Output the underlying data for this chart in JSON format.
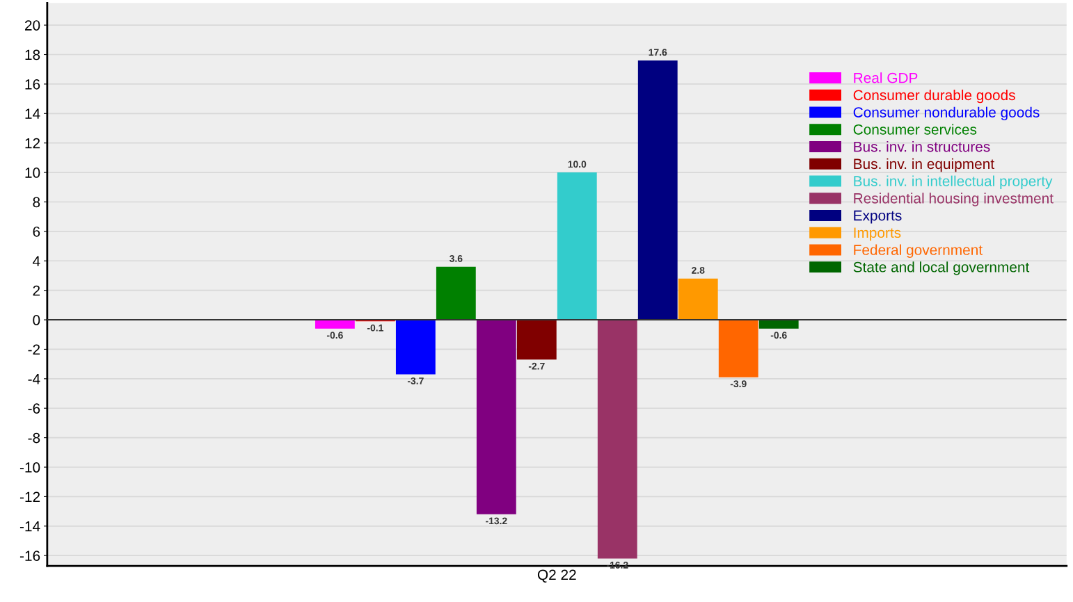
{
  "chart_data": {
    "type": "bar",
    "categories": [
      "Q2 22"
    ],
    "series": [
      {
        "name": "Real GDP",
        "color": "#ff00ff",
        "values": [
          -0.6
        ]
      },
      {
        "name": "Consumer durable goods",
        "color": "#ff0000",
        "values": [
          -0.1
        ]
      },
      {
        "name": "Consumer nondurable goods",
        "color": "#0000ff",
        "values": [
          -3.7
        ]
      },
      {
        "name": "Consumer services",
        "color": "#008000",
        "values": [
          3.6
        ]
      },
      {
        "name": "Bus. inv. in structures",
        "color": "#800080",
        "values": [
          -13.2
        ]
      },
      {
        "name": "Bus. inv. in equipment",
        "color": "#800000",
        "values": [
          -2.7
        ]
      },
      {
        "name": "Bus. inv. in intellectual property",
        "color": "#33cccc",
        "values": [
          10.0
        ],
        "value_labels": [
          "10.0"
        ]
      },
      {
        "name": "Residential housing investment",
        "color": "#993366",
        "values": [
          -16.2
        ]
      },
      {
        "name": "Exports",
        "color": "#000080",
        "values": [
          17.6
        ]
      },
      {
        "name": "Imports",
        "color": "#ff9900",
        "values": [
          2.8
        ]
      },
      {
        "name": "Federal government",
        "color": "#ff6600",
        "values": [
          -3.9
        ]
      },
      {
        "name": "State and local government",
        "color": "#006600",
        "values": [
          -0.6
        ]
      }
    ],
    "ylim": [
      -16.7,
      21.5
    ],
    "yticks": [
      -16,
      -14,
      -12,
      -10,
      -8,
      -6,
      -4,
      -2,
      0,
      2,
      4,
      6,
      8,
      10,
      12,
      14,
      16,
      18,
      20
    ],
    "grid": "y",
    "legend": "right",
    "data_labels": true,
    "ref_lines": [
      {
        "axis": "y",
        "value": 0,
        "color": "#333333"
      }
    ]
  }
}
